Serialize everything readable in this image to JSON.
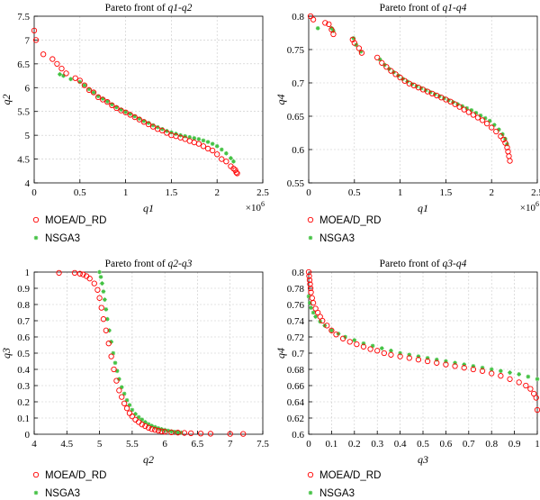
{
  "colors": {
    "moead": "#ff0000",
    "nsga3": "#44c244",
    "grid": "#c8c8c8",
    "axis": "#000000"
  },
  "chart_data": [
    {
      "type": "scatter",
      "title": "Pareto front of q1-q2",
      "title_parts": [
        "Pareto front of ",
        "q1",
        "-",
        "q2"
      ],
      "xlabel": "q1",
      "ylabel": "q2",
      "multiplier": "×10^6",
      "xlim": [
        0,
        2.5
      ],
      "ylim": [
        4,
        7.5
      ],
      "xticks": [
        "0",
        "0.5",
        "1",
        "1.5",
        "2",
        "2.5"
      ],
      "yticks": [
        "4",
        "4.5",
        "5",
        "5.5",
        "6",
        "6.5",
        "7",
        "7.5"
      ],
      "grid": true,
      "legend_position": "below",
      "series": [
        {
          "name": "MOEA/D_RD",
          "marker": "open-circle",
          "x": [
            0.0,
            0.02,
            0.1,
            0.2,
            0.25,
            0.3,
            0.35,
            0.45,
            0.5,
            0.55,
            0.6,
            0.65,
            0.7,
            0.75,
            0.8,
            0.85,
            0.9,
            0.95,
            1.0,
            1.05,
            1.1,
            1.15,
            1.2,
            1.25,
            1.3,
            1.35,
            1.4,
            1.45,
            1.5,
            1.55,
            1.6,
            1.65,
            1.7,
            1.75,
            1.8,
            1.85,
            1.9,
            1.95,
            2.0,
            2.05,
            2.1,
            2.15,
            2.18,
            2.2,
            2.21,
            2.22
          ],
          "y": [
            7.2,
            7.0,
            6.7,
            6.6,
            6.5,
            6.4,
            6.3,
            6.2,
            6.15,
            6.05,
            5.95,
            5.9,
            5.8,
            5.75,
            5.7,
            5.63,
            5.57,
            5.52,
            5.48,
            5.43,
            5.38,
            5.33,
            5.28,
            5.23,
            5.18,
            5.13,
            5.1,
            5.05,
            5.0,
            4.98,
            4.95,
            4.92,
            4.88,
            4.85,
            4.82,
            4.77,
            4.72,
            4.68,
            4.6,
            4.5,
            4.45,
            4.35,
            4.3,
            4.27,
            4.22,
            4.2
          ]
        },
        {
          "name": "NSGA3",
          "marker": "star",
          "x": [
            0.28,
            0.32,
            0.4,
            0.5,
            0.55,
            0.6,
            0.65,
            0.7,
            0.75,
            0.8,
            0.85,
            0.9,
            0.95,
            1.0,
            1.05,
            1.1,
            1.15,
            1.2,
            1.25,
            1.3,
            1.35,
            1.4,
            1.45,
            1.5,
            1.55,
            1.6,
            1.65,
            1.7,
            1.75,
            1.8,
            1.85,
            1.9,
            1.95,
            2.0,
            2.05,
            2.1,
            2.15,
            2.18
          ],
          "y": [
            6.28,
            6.25,
            6.18,
            6.12,
            6.05,
            5.97,
            5.9,
            5.82,
            5.77,
            5.71,
            5.65,
            5.59,
            5.54,
            5.49,
            5.45,
            5.4,
            5.35,
            5.3,
            5.26,
            5.21,
            5.17,
            5.13,
            5.09,
            5.06,
            5.03,
            5.0,
            4.98,
            4.96,
            4.94,
            4.92,
            4.89,
            4.86,
            4.82,
            4.77,
            4.7,
            4.62,
            4.52,
            4.45
          ]
        }
      ]
    },
    {
      "type": "scatter",
      "title": "Pareto front of q1-q4",
      "title_parts": [
        "Pareto front of ",
        "q1",
        "-",
        "q4"
      ],
      "xlabel": "q1",
      "ylabel": "q4",
      "multiplier": "×10^6",
      "xlim": [
        0,
        2.5
      ],
      "ylim": [
        0.55,
        0.8
      ],
      "xticks": [
        "0",
        "0.5",
        "1",
        "1.5",
        "2",
        "2.5"
      ],
      "yticks": [
        "0.55",
        "0.6",
        "0.65",
        "0.7",
        "0.75",
        "0.8"
      ],
      "grid": true,
      "legend_position": "below",
      "series": [
        {
          "name": "MOEA/D_RD",
          "marker": "open-circle",
          "x": [
            0.02,
            0.05,
            0.18,
            0.22,
            0.25,
            0.27,
            0.48,
            0.5,
            0.55,
            0.58,
            0.75,
            0.8,
            0.85,
            0.9,
            0.95,
            1.0,
            1.05,
            1.1,
            1.15,
            1.2,
            1.25,
            1.3,
            1.35,
            1.4,
            1.45,
            1.5,
            1.55,
            1.6,
            1.65,
            1.7,
            1.75,
            1.8,
            1.85,
            1.9,
            1.95,
            2.0,
            2.05,
            2.1,
            2.13,
            2.15,
            2.17,
            2.18,
            2.19,
            2.2
          ],
          "y": [
            0.8,
            0.795,
            0.79,
            0.788,
            0.78,
            0.773,
            0.765,
            0.76,
            0.752,
            0.745,
            0.738,
            0.73,
            0.724,
            0.718,
            0.713,
            0.708,
            0.703,
            0.699,
            0.696,
            0.693,
            0.69,
            0.687,
            0.684,
            0.681,
            0.678,
            0.675,
            0.672,
            0.668,
            0.664,
            0.66,
            0.656,
            0.652,
            0.648,
            0.644,
            0.639,
            0.633,
            0.627,
            0.62,
            0.615,
            0.61,
            0.603,
            0.597,
            0.59,
            0.583
          ]
        },
        {
          "name": "NSGA3",
          "marker": "star",
          "x": [
            0.1,
            0.25,
            0.27,
            0.49,
            0.52,
            0.57,
            0.78,
            0.83,
            0.88,
            0.93,
            0.98,
            1.03,
            1.08,
            1.13,
            1.18,
            1.23,
            1.28,
            1.33,
            1.38,
            1.43,
            1.48,
            1.53,
            1.58,
            1.63,
            1.68,
            1.73,
            1.78,
            1.83,
            1.88,
            1.93,
            1.98,
            2.03,
            2.08,
            2.12,
            2.15,
            2.17
          ],
          "y": [
            0.782,
            0.782,
            0.778,
            0.767,
            0.757,
            0.747,
            0.735,
            0.727,
            0.721,
            0.716,
            0.711,
            0.706,
            0.702,
            0.698,
            0.695,
            0.692,
            0.689,
            0.686,
            0.683,
            0.68,
            0.677,
            0.674,
            0.671,
            0.668,
            0.665,
            0.662,
            0.659,
            0.655,
            0.651,
            0.647,
            0.643,
            0.637,
            0.63,
            0.623,
            0.616,
            0.608
          ]
        }
      ]
    },
    {
      "type": "scatter",
      "title": "Pareto front of q2-q3",
      "title_parts": [
        "Pareto front of ",
        "q2",
        "-",
        "q3"
      ],
      "xlabel": "q2",
      "ylabel": "q3",
      "multiplier": "",
      "xlim": [
        4,
        7.5
      ],
      "ylim": [
        0,
        1
      ],
      "xticks": [
        "4",
        "4.5",
        "5",
        "5.5",
        "6",
        "6.5",
        "7",
        "7.5"
      ],
      "yticks": [
        "0",
        "0.1",
        "0.2",
        "0.3",
        "0.4",
        "0.5",
        "0.6",
        "0.7",
        "0.8",
        "0.9",
        "1"
      ],
      "grid": true,
      "legend_position": "below",
      "series": [
        {
          "name": "MOEA/D_RD",
          "marker": "open-circle",
          "x": [
            4.38,
            4.62,
            4.7,
            4.75,
            4.8,
            4.85,
            4.92,
            4.97,
            5.0,
            5.03,
            5.06,
            5.1,
            5.14,
            5.18,
            5.22,
            5.26,
            5.3,
            5.34,
            5.38,
            5.42,
            5.46,
            5.5,
            5.55,
            5.6,
            5.65,
            5.7,
            5.75,
            5.8,
            5.85,
            5.9,
            5.95,
            6.0,
            6.1,
            6.2,
            6.3,
            6.4,
            6.55,
            6.7,
            7.0,
            7.2
          ],
          "y": [
            0.995,
            0.995,
            0.99,
            0.985,
            0.975,
            0.96,
            0.93,
            0.89,
            0.84,
            0.78,
            0.71,
            0.64,
            0.56,
            0.48,
            0.4,
            0.33,
            0.27,
            0.23,
            0.19,
            0.16,
            0.13,
            0.11,
            0.09,
            0.075,
            0.06,
            0.05,
            0.04,
            0.032,
            0.027,
            0.022,
            0.018,
            0.015,
            0.012,
            0.01,
            0.008,
            0.006,
            0.004,
            0.003,
            0.002,
            0.002
          ]
        },
        {
          "name": "NSGA3",
          "marker": "star",
          "x": [
            5.0,
            5.02,
            5.04,
            5.06,
            5.08,
            5.1,
            5.12,
            5.15,
            5.18,
            5.21,
            5.24,
            5.27,
            5.3,
            5.34,
            5.38,
            5.42,
            5.46,
            5.5,
            5.55,
            5.6,
            5.65,
            5.7,
            5.75,
            5.8,
            5.85,
            5.9,
            5.95,
            6.0,
            6.05,
            6.1,
            6.15,
            6.2,
            6.25
          ],
          "y": [
            1.0,
            0.97,
            0.93,
            0.88,
            0.83,
            0.77,
            0.71,
            0.64,
            0.57,
            0.5,
            0.44,
            0.39,
            0.34,
            0.29,
            0.25,
            0.21,
            0.18,
            0.15,
            0.125,
            0.105,
            0.09,
            0.075,
            0.062,
            0.052,
            0.044,
            0.037,
            0.031,
            0.026,
            0.022,
            0.018,
            0.015,
            0.012,
            0.01
          ]
        }
      ]
    },
    {
      "type": "scatter",
      "title": "Pareto front of q3-q4",
      "title_parts": [
        "Pareto front of ",
        "q3",
        "-",
        "q4"
      ],
      "xlabel": "q3",
      "ylabel": "q4",
      "multiplier": "",
      "xlim": [
        0,
        1
      ],
      "ylim": [
        0.6,
        0.8
      ],
      "xticks": [
        "0",
        "0.1",
        "0.2",
        "0.3",
        "0.4",
        "0.5",
        "0.6",
        "0.7",
        "0.8",
        "0.9",
        "1"
      ],
      "yticks": [
        "0.6",
        "0.62",
        "0.64",
        "0.66",
        "0.68",
        "0.7",
        "0.72",
        "0.74",
        "0.76",
        "0.78",
        "0.8"
      ],
      "grid": true,
      "legend_position": "below",
      "series": [
        {
          "name": "MOEA/D_RD",
          "marker": "open-circle",
          "x": [
            0.0,
            0.002,
            0.004,
            0.006,
            0.008,
            0.01,
            0.015,
            0.02,
            0.03,
            0.04,
            0.05,
            0.06,
            0.08,
            0.1,
            0.12,
            0.15,
            0.18,
            0.21,
            0.24,
            0.27,
            0.3,
            0.33,
            0.36,
            0.4,
            0.44,
            0.48,
            0.52,
            0.56,
            0.6,
            0.64,
            0.68,
            0.72,
            0.76,
            0.8,
            0.84,
            0.88,
            0.92,
            0.95,
            0.97,
            0.985,
            0.995,
            1.0
          ],
          "y": [
            0.8,
            0.795,
            0.79,
            0.785,
            0.78,
            0.775,
            0.768,
            0.762,
            0.755,
            0.75,
            0.745,
            0.74,
            0.734,
            0.728,
            0.723,
            0.718,
            0.714,
            0.711,
            0.708,
            0.705,
            0.703,
            0.7,
            0.698,
            0.696,
            0.694,
            0.692,
            0.69,
            0.688,
            0.686,
            0.684,
            0.682,
            0.68,
            0.678,
            0.675,
            0.672,
            0.668,
            0.664,
            0.66,
            0.656,
            0.65,
            0.645,
            0.63
          ]
        },
        {
          "name": "NSGA3",
          "marker": "star",
          "x": [
            0.0,
            0.005,
            0.01,
            0.02,
            0.03,
            0.05,
            0.07,
            0.1,
            0.13,
            0.16,
            0.2,
            0.24,
            0.28,
            0.32,
            0.36,
            0.4,
            0.44,
            0.48,
            0.52,
            0.56,
            0.6,
            0.64,
            0.68,
            0.72,
            0.76,
            0.8,
            0.84,
            0.88,
            0.92,
            0.96,
            1.0
          ],
          "y": [
            0.77,
            0.762,
            0.756,
            0.75,
            0.745,
            0.739,
            0.734,
            0.728,
            0.724,
            0.72,
            0.716,
            0.712,
            0.709,
            0.706,
            0.703,
            0.7,
            0.698,
            0.696,
            0.694,
            0.692,
            0.69,
            0.688,
            0.686,
            0.684,
            0.682,
            0.68,
            0.678,
            0.676,
            0.674,
            0.671,
            0.668
          ]
        }
      ]
    }
  ]
}
